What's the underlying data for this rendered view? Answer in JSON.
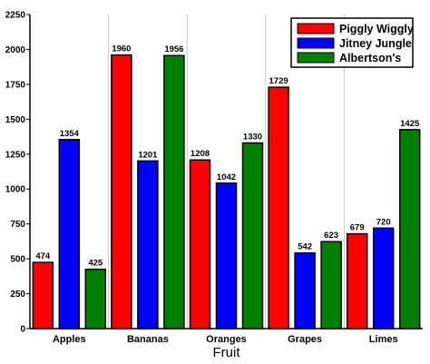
{
  "chart_data": {
    "type": "bar",
    "categories": [
      "Apples",
      "Bananas",
      "Oranges",
      "Grapes",
      "Limes"
    ],
    "series": [
      {
        "name": "Piggly Wiggly",
        "color": "#ff0000",
        "values": [
          474,
          1960,
          1208,
          1729,
          679
        ]
      },
      {
        "name": "Jitney Jungle",
        "color": "#0000ff",
        "values": [
          1354,
          1201,
          1042,
          542,
          720
        ]
      },
      {
        "name": "Albertson's",
        "color": "#008000",
        "values": [
          425,
          1956,
          1330,
          623,
          1425
        ]
      }
    ],
    "xlabel": "Fruit",
    "ylabel": "",
    "ylim": [
      0,
      2250
    ],
    "yticks": [
      "0",
      "250",
      "500",
      "750",
      "1000",
      "1250",
      "1500",
      "1750",
      "2000",
      "2250"
    ],
    "grid": {
      "horizontal": false,
      "vertical_separators": true
    },
    "legend_position": "top-right",
    "data_labels": true
  }
}
